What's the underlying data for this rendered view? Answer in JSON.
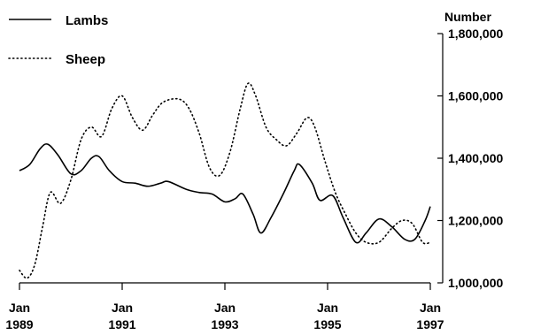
{
  "chart_data": {
    "type": "line",
    "legend_position": "top-left",
    "x_axis": {
      "ticks": [
        {
          "x": 1989.0,
          "line1": "Jan",
          "line2": "1989"
        },
        {
          "x": 1991.0,
          "line1": "Jan",
          "line2": "1991"
        },
        {
          "x": 1993.0,
          "line1": "Jan",
          "line2": "1993"
        },
        {
          "x": 1995.0,
          "line1": "Jan",
          "line2": "1995"
        },
        {
          "x": 1997.0,
          "line1": "Jan",
          "line2": "1997"
        }
      ],
      "range": [
        1989.0,
        1997.0
      ]
    },
    "y_axis": {
      "label": "Number",
      "position": "right",
      "range": [
        1000000,
        1800000
      ],
      "ticks": [
        {
          "value": 1000000,
          "label": "1,000,000"
        },
        {
          "value": 1200000,
          "label": "1,200,000"
        },
        {
          "value": 1400000,
          "label": "1,400,000"
        },
        {
          "value": 1600000,
          "label": "1,600,000"
        },
        {
          "value": 1800000,
          "label": "1,800,000"
        }
      ]
    },
    "series": [
      {
        "name": "Lambs",
        "style": "solid",
        "points": [
          [
            1989.0,
            1360000
          ],
          [
            1989.2,
            1380000
          ],
          [
            1989.4,
            1430000
          ],
          [
            1989.55,
            1445000
          ],
          [
            1989.75,
            1410000
          ],
          [
            1990.0,
            1350000
          ],
          [
            1990.2,
            1360000
          ],
          [
            1990.4,
            1400000
          ],
          [
            1990.55,
            1405000
          ],
          [
            1990.75,
            1360000
          ],
          [
            1991.0,
            1325000
          ],
          [
            1991.25,
            1320000
          ],
          [
            1991.5,
            1310000
          ],
          [
            1991.75,
            1320000
          ],
          [
            1991.9,
            1325000
          ],
          [
            1992.25,
            1300000
          ],
          [
            1992.5,
            1290000
          ],
          [
            1992.75,
            1285000
          ],
          [
            1993.0,
            1260000
          ],
          [
            1993.2,
            1270000
          ],
          [
            1993.35,
            1285000
          ],
          [
            1993.55,
            1220000
          ],
          [
            1993.7,
            1160000
          ],
          [
            1993.9,
            1210000
          ],
          [
            1994.15,
            1290000
          ],
          [
            1994.35,
            1360000
          ],
          [
            1994.45,
            1380000
          ],
          [
            1994.7,
            1320000
          ],
          [
            1994.85,
            1265000
          ],
          [
            1995.1,
            1280000
          ],
          [
            1995.3,
            1210000
          ],
          [
            1995.55,
            1130000
          ],
          [
            1995.75,
            1160000
          ],
          [
            1996.0,
            1205000
          ],
          [
            1996.25,
            1180000
          ],
          [
            1996.5,
            1140000
          ],
          [
            1996.7,
            1140000
          ],
          [
            1996.9,
            1200000
          ],
          [
            1997.0,
            1245000
          ]
        ]
      },
      {
        "name": "Sheep",
        "style": "dotted",
        "points": [
          [
            1989.0,
            1040000
          ],
          [
            1989.15,
            1015000
          ],
          [
            1989.3,
            1060000
          ],
          [
            1989.45,
            1180000
          ],
          [
            1989.6,
            1290000
          ],
          [
            1989.8,
            1255000
          ],
          [
            1990.0,
            1330000
          ],
          [
            1990.2,
            1460000
          ],
          [
            1990.4,
            1500000
          ],
          [
            1990.6,
            1470000
          ],
          [
            1990.8,
            1560000
          ],
          [
            1991.0,
            1600000
          ],
          [
            1991.2,
            1530000
          ],
          [
            1991.4,
            1490000
          ],
          [
            1991.6,
            1540000
          ],
          [
            1991.8,
            1580000
          ],
          [
            1992.1,
            1590000
          ],
          [
            1992.3,
            1560000
          ],
          [
            1992.5,
            1480000
          ],
          [
            1992.7,
            1370000
          ],
          [
            1992.9,
            1345000
          ],
          [
            1993.1,
            1420000
          ],
          [
            1993.3,
            1560000
          ],
          [
            1993.45,
            1640000
          ],
          [
            1993.6,
            1600000
          ],
          [
            1993.8,
            1500000
          ],
          [
            1994.0,
            1460000
          ],
          [
            1994.2,
            1440000
          ],
          [
            1994.4,
            1480000
          ],
          [
            1994.6,
            1530000
          ],
          [
            1994.75,
            1500000
          ],
          [
            1994.95,
            1390000
          ],
          [
            1995.15,
            1290000
          ],
          [
            1995.35,
            1220000
          ],
          [
            1995.55,
            1160000
          ],
          [
            1995.75,
            1130000
          ],
          [
            1996.0,
            1130000
          ],
          [
            1996.25,
            1175000
          ],
          [
            1996.45,
            1200000
          ],
          [
            1996.65,
            1190000
          ],
          [
            1996.85,
            1130000
          ],
          [
            1997.0,
            1130000
          ]
        ]
      }
    ]
  }
}
